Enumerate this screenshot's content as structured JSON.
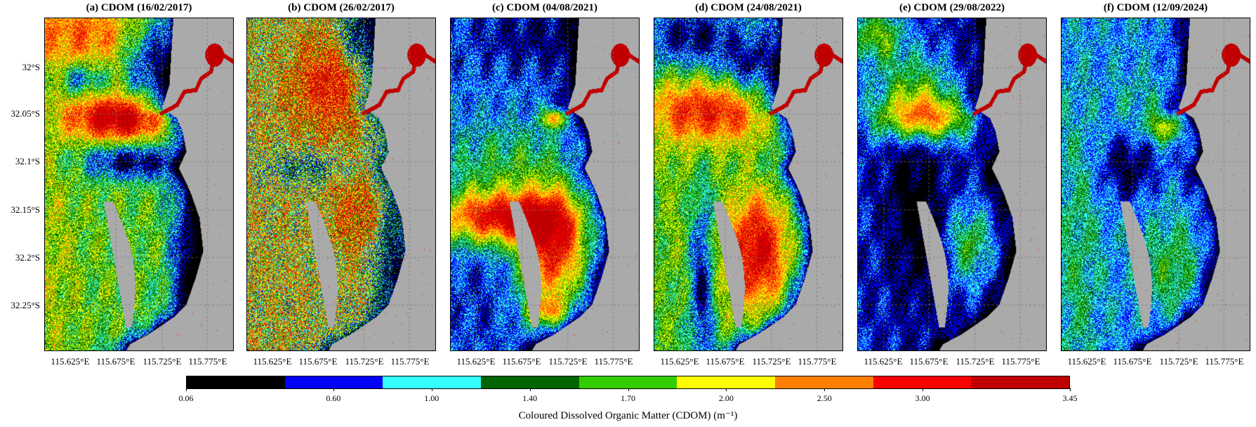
{
  "panels": [
    {
      "title": "(a) CDOM (16/02/2017)"
    },
    {
      "title": "(b) CDOM (26/02/2017)"
    },
    {
      "title": "(c) CDOM (04/08/2021)"
    },
    {
      "title": "(d) CDOM (24/08/2021)"
    },
    {
      "title": "(e) CDOM (29/08/2022)"
    },
    {
      "title": "(f) CDOM (12/09/2024)"
    }
  ],
  "lat_ticks": [
    "32°S",
    "32.05°S",
    "32.1°S",
    "32.15°S",
    "32.2°S",
    "32.25°S"
  ],
  "lon_ticks": [
    "115.625°E",
    "115.675°E",
    "115.725°E",
    "115.775°E"
  ],
  "colorbar": {
    "label": "Coloured Dissolved Organic Matter (CDOM) (m⁻¹)",
    "ticks": [
      "0.06",
      "0.60",
      "1.00",
      "1.40",
      "1.70",
      "2.00",
      "2.50",
      "3.00",
      "3.45"
    ],
    "colors": [
      "#000000",
      "#0000ff",
      "#33ffff",
      "#006400",
      "#33cc00",
      "#ffff00",
      "#ff8000",
      "#ff0000",
      "#c00000"
    ]
  },
  "land_color": "#aaaaaa"
}
